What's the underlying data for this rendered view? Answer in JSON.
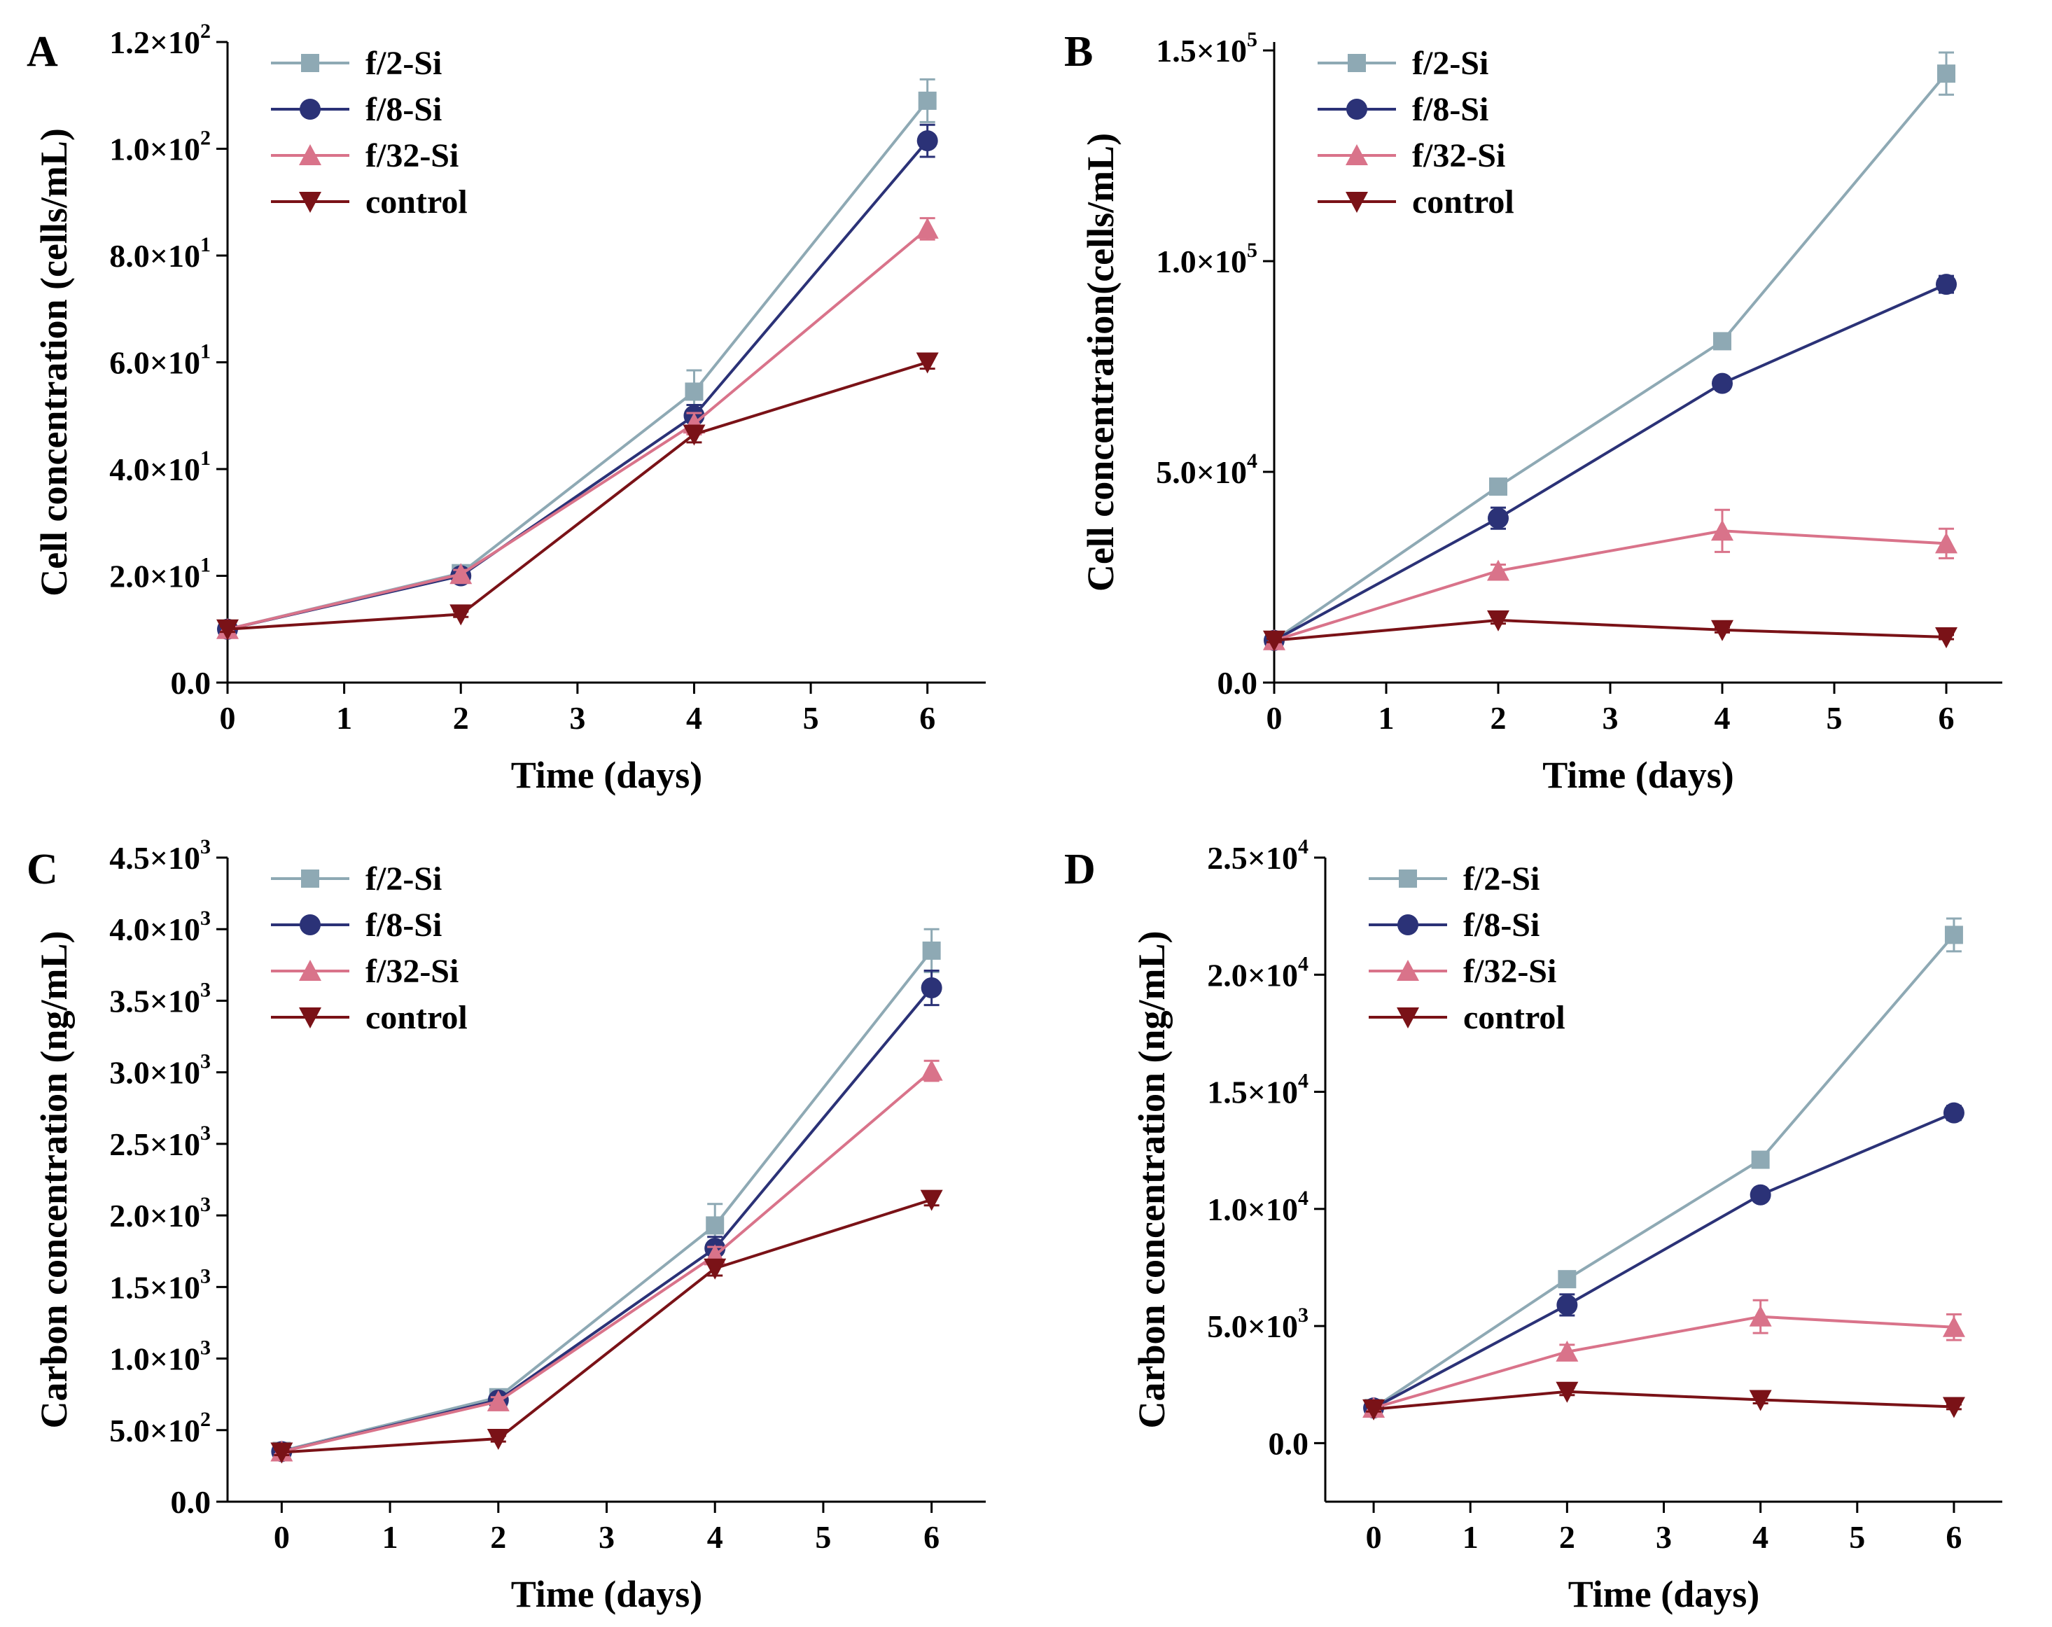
{
  "colors": {
    "f2": "#8ea9b4",
    "f8": "#2b3277",
    "f32": "#d9738a",
    "control": "#7a1217"
  },
  "chart_data": [
    {
      "panel": "A",
      "type": "line",
      "xlabel": "Time (days)",
      "ylabel": "Cell concentration (cells/mL)",
      "xlim": [
        0,
        6.5
      ],
      "ylim": [
        0,
        120
      ],
      "xticks": [
        0,
        1,
        2,
        3,
        4,
        5,
        6
      ],
      "xtick_labels": [
        "0",
        "1",
        "2",
        "3",
        "4",
        "5",
        "6"
      ],
      "yticks": [
        0,
        20,
        40,
        60,
        80,
        100,
        120
      ],
      "ytick_labels": [
        {
          "m": "0.0",
          "e": ""
        },
        {
          "m": "2.0×10",
          "e": "1"
        },
        {
          "m": "4.0×10",
          "e": "1"
        },
        {
          "m": "6.0×10",
          "e": "1"
        },
        {
          "m": "8.0×10",
          "e": "1"
        },
        {
          "m": "1.0×10",
          "e": "2"
        },
        {
          "m": "1.2×10",
          "e": "2"
        }
      ],
      "legend_position": "top-left",
      "series": [
        {
          "name": "f/2-Si",
          "key": "f2",
          "marker": "square",
          "x": [
            0,
            2,
            4,
            6
          ],
          "y": [
            10,
            20.5,
            54.5,
            109
          ],
          "err": [
            0.8,
            1,
            4,
            4
          ]
        },
        {
          "name": "f/8-Si",
          "key": "f8",
          "marker": "circle",
          "x": [
            0,
            2,
            4,
            6
          ],
          "y": [
            10,
            20,
            50,
            101.5
          ],
          "err": [
            0.5,
            1,
            2,
            3
          ]
        },
        {
          "name": "f/32-Si",
          "key": "f32",
          "marker": "triangle-up",
          "x": [
            0,
            2,
            4,
            6
          ],
          "y": [
            10,
            20.3,
            48.5,
            85
          ],
          "err": [
            0.5,
            0.8,
            2,
            2
          ]
        },
        {
          "name": "control",
          "key": "control",
          "marker": "triangle-down",
          "x": [
            0,
            2,
            4,
            6
          ],
          "y": [
            10,
            12.8,
            46.5,
            60
          ],
          "err": [
            0.5,
            0.5,
            1.5,
            1.2
          ]
        }
      ]
    },
    {
      "panel": "B",
      "type": "line",
      "xlabel": "Time (days)",
      "ylabel": "Cell concentration(cells/mL)",
      "xlim": [
        0,
        6.5
      ],
      "ylim": [
        0,
        152000
      ],
      "xticks": [
        0,
        1,
        2,
        3,
        4,
        5,
        6
      ],
      "xtick_labels": [
        "0",
        "1",
        "2",
        "3",
        "4",
        "5",
        "6"
      ],
      "yticks": [
        0,
        50000,
        100000,
        150000
      ],
      "ytick_labels": [
        {
          "m": "0.0",
          "e": ""
        },
        {
          "m": "5.0×10",
          "e": "4"
        },
        {
          "m": "1.0×10",
          "e": "5"
        },
        {
          "m": "1.5×10",
          "e": "5"
        }
      ],
      "legend_position": "top-left",
      "series": [
        {
          "name": "f/2-Si",
          "key": "f2",
          "marker": "square",
          "x": [
            0,
            2,
            4,
            6
          ],
          "y": [
            10000,
            46500,
            81000,
            144500
          ],
          "err": [
            500,
            800,
            1000,
            5000
          ]
        },
        {
          "name": "f/8-Si",
          "key": "f8",
          "marker": "circle",
          "x": [
            0,
            2,
            4,
            6
          ],
          "y": [
            10000,
            39000,
            71000,
            94500
          ],
          "err": [
            500,
            2500,
            1500,
            2000
          ]
        },
        {
          "name": "f/32-Si",
          "key": "f32",
          "marker": "triangle-up",
          "x": [
            0,
            2,
            4,
            6
          ],
          "y": [
            10000,
            26500,
            36000,
            33000
          ],
          "err": [
            500,
            1500,
            5000,
            3500
          ]
        },
        {
          "name": "control",
          "key": "control",
          "marker": "triangle-down",
          "x": [
            0,
            2,
            4,
            6
          ],
          "y": [
            10000,
            14800,
            12500,
            10800
          ],
          "err": [
            400,
            800,
            600,
            500
          ]
        }
      ]
    },
    {
      "panel": "C",
      "type": "line",
      "xlabel": "Time (days)",
      "ylabel": "Carbon concentration (ng/mL)",
      "xlim": [
        -0.5,
        6.5
      ],
      "ylim": [
        0,
        4500
      ],
      "xticks": [
        0,
        1,
        2,
        3,
        4,
        5,
        6
      ],
      "xtick_labels": [
        "0",
        "1",
        "2",
        "3",
        "4",
        "5",
        "6"
      ],
      "yticks": [
        0,
        500,
        1000,
        1500,
        2000,
        2500,
        3000,
        3500,
        4000,
        4500
      ],
      "ytick_labels": [
        {
          "m": "0.0",
          "e": ""
        },
        {
          "m": "5.0×10",
          "e": "2"
        },
        {
          "m": "1.0×10",
          "e": "3"
        },
        {
          "m": "1.5×10",
          "e": "3"
        },
        {
          "m": "2.0×10",
          "e": "3"
        },
        {
          "m": "2.5×10",
          "e": "3"
        },
        {
          "m": "3.0×10",
          "e": "3"
        },
        {
          "m": "3.5×10",
          "e": "3"
        },
        {
          "m": "4.0×10",
          "e": "3"
        },
        {
          "m": "4.5×10",
          "e": "3"
        }
      ],
      "legend_position": "top-left",
      "series": [
        {
          "name": "f/2-Si",
          "key": "f2",
          "marker": "square",
          "x": [
            0,
            2,
            4,
            6
          ],
          "y": [
            355,
            730,
            1930,
            3850
          ],
          "err": [
            30,
            40,
            150,
            150
          ]
        },
        {
          "name": "f/8-Si",
          "key": "f8",
          "marker": "circle",
          "x": [
            0,
            2,
            4,
            6
          ],
          "y": [
            350,
            710,
            1770,
            3590
          ],
          "err": [
            20,
            30,
            80,
            120
          ]
        },
        {
          "name": "f/32-Si",
          "key": "f32",
          "marker": "triangle-up",
          "x": [
            0,
            2,
            4,
            6
          ],
          "y": [
            350,
            700,
            1720,
            3010
          ],
          "err": [
            20,
            30,
            60,
            70
          ]
        },
        {
          "name": "control",
          "key": "control",
          "marker": "triangle-down",
          "x": [
            0,
            2,
            4,
            6
          ],
          "y": [
            345,
            440,
            1630,
            2110
          ],
          "err": [
            20,
            20,
            50,
            40
          ]
        }
      ]
    },
    {
      "panel": "D",
      "type": "line",
      "xlabel": "Time (days)",
      "ylabel": "Carbon concentration (ng/mL)",
      "xlim": [
        -0.5,
        6.5
      ],
      "ylim": [
        -2500,
        25000
      ],
      "xticks": [
        0,
        1,
        2,
        3,
        4,
        5,
        6
      ],
      "xtick_labels": [
        "0",
        "1",
        "2",
        "3",
        "4",
        "5",
        "6"
      ],
      "yticks": [
        0,
        5000,
        10000,
        15000,
        20000,
        25000
      ],
      "ytick_labels": [
        {
          "m": "0.0",
          "e": ""
        },
        {
          "m": "5.0×10",
          "e": "3"
        },
        {
          "m": "1.0×10",
          "e": "4"
        },
        {
          "m": "1.5×10",
          "e": "4"
        },
        {
          "m": "2.0×10",
          "e": "4"
        },
        {
          "m": "2.5×10",
          "e": "4"
        }
      ],
      "legend_position": "top-left",
      "series": [
        {
          "name": "f/2-Si",
          "key": "f2",
          "marker": "square",
          "x": [
            0,
            2,
            4,
            6
          ],
          "y": [
            1500,
            7000,
            12100,
            21700
          ],
          "err": [
            150,
            200,
            250,
            700
          ]
        },
        {
          "name": "f/8-Si",
          "key": "f8",
          "marker": "circle",
          "x": [
            0,
            2,
            4,
            6
          ],
          "y": [
            1500,
            5900,
            10600,
            14100
          ],
          "err": [
            150,
            450,
            200,
            300
          ]
        },
        {
          "name": "f/32-Si",
          "key": "f32",
          "marker": "triangle-up",
          "x": [
            0,
            2,
            4,
            6
          ],
          "y": [
            1500,
            3900,
            5400,
            4950
          ],
          "err": [
            150,
            300,
            700,
            550
          ]
        },
        {
          "name": "control",
          "key": "control",
          "marker": "triangle-down",
          "x": [
            0,
            2,
            4,
            6
          ],
          "y": [
            1450,
            2200,
            1850,
            1550
          ],
          "err": [
            100,
            150,
            150,
            100
          ]
        }
      ]
    }
  ]
}
